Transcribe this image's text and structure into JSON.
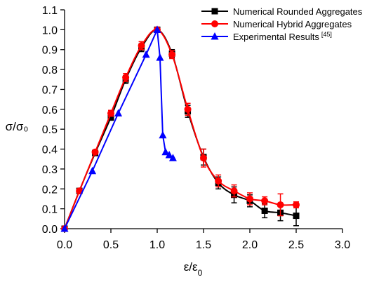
{
  "chart_data": {
    "type": "line",
    "xlabel": "ε/ε",
    "xlabel_sub": "0",
    "ylabel": "σ/σ₀",
    "xlim": [
      0.0,
      3.0
    ],
    "ylim": [
      0.0,
      1.1
    ],
    "xticks": [
      "0.0",
      "0.5",
      "1.0",
      "1.5",
      "2.0",
      "2.5",
      "3.0"
    ],
    "yticks": [
      "0.0",
      "0.1",
      "0.2",
      "0.3",
      "0.4",
      "0.5",
      "0.6",
      "0.7",
      "0.8",
      "0.9",
      "1.0",
      "1.1"
    ],
    "legend_position": "top-right",
    "grid": false,
    "series": [
      {
        "name": "Numerical Rounded Aggregates",
        "color": "#000000",
        "marker": "square",
        "x": [
          0.0,
          0.16,
          0.33,
          0.5,
          0.66,
          0.83,
          1.0,
          1.16,
          1.33,
          1.5,
          1.66,
          1.83,
          2.0,
          2.16,
          2.33,
          2.5
        ],
        "y": [
          0.0,
          0.19,
          0.38,
          0.56,
          0.75,
          0.91,
          1.0,
          0.88,
          0.59,
          0.36,
          0.23,
          0.17,
          0.14,
          0.09,
          0.08,
          0.065
        ],
        "err": [
          0.0,
          0.01,
          0.01,
          0.015,
          0.02,
          0.02,
          0.01,
          0.02,
          0.03,
          0.04,
          0.03,
          0.04,
          0.03,
          0.035,
          0.04,
          0.05
        ]
      },
      {
        "name": "Numerical Hybrid Aggregates",
        "color": "#ff0000",
        "marker": "circle",
        "x": [
          0.0,
          0.16,
          0.33,
          0.5,
          0.66,
          0.83,
          1.0,
          1.16,
          1.33,
          1.5,
          1.66,
          1.83,
          2.0,
          2.16,
          2.33,
          2.5
        ],
        "y": [
          0.0,
          0.19,
          0.385,
          0.58,
          0.76,
          0.92,
          1.0,
          0.875,
          0.6,
          0.355,
          0.24,
          0.19,
          0.15,
          0.14,
          0.12,
          0.12
        ],
        "err": [
          0.0,
          0.01,
          0.01,
          0.015,
          0.02,
          0.02,
          0.01,
          0.02,
          0.03,
          0.045,
          0.03,
          0.03,
          0.03,
          0.02,
          0.055,
          0.015
        ]
      },
      {
        "name": "Experimental Results",
        "name_sup": "[45]",
        "color": "#0000ff",
        "marker": "triangle",
        "x": [
          0.0,
          0.3,
          0.58,
          0.88,
          1.0,
          1.03,
          1.06,
          1.09,
          1.13,
          1.17
        ],
        "y": [
          0.0,
          0.29,
          0.58,
          0.875,
          1.0,
          0.86,
          0.47,
          0.385,
          0.37,
          0.355
        ]
      }
    ]
  }
}
